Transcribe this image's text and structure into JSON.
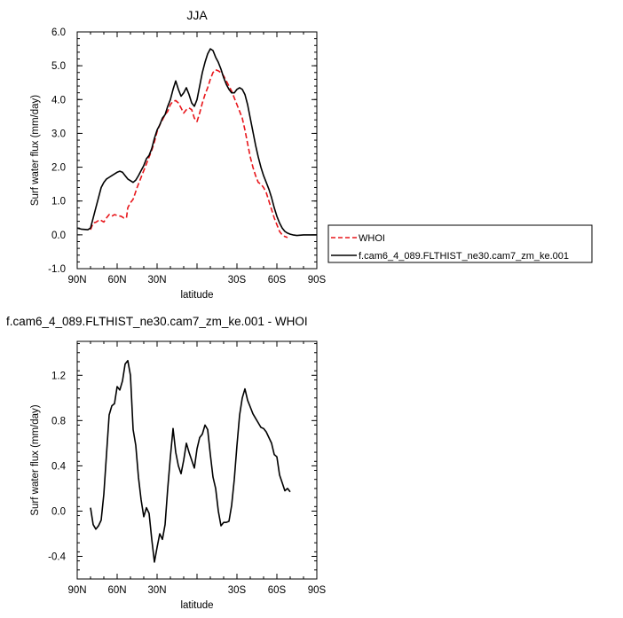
{
  "chart_data": [
    {
      "type": "line",
      "title": "JJA",
      "xlabel": "latitude",
      "ylabel": "Surf water flux (mm/day)",
      "xlim": [
        90,
        -90
      ],
      "ylim": [
        -1.0,
        6.0
      ],
      "x_ticks": [
        90,
        60,
        30,
        0,
        -30,
        -60,
        -90
      ],
      "x_tick_labels": [
        "90N",
        "60N",
        "30N",
        "",
        "30S",
        "60S",
        "90S"
      ],
      "y_ticks": [
        -1.0,
        0.0,
        1.0,
        2.0,
        3.0,
        4.0,
        5.0,
        6.0
      ],
      "y_tick_labels": [
        "-1.0",
        "0.0",
        "1.0",
        "2.0",
        "3.0",
        "4.0",
        "5.0",
        "6.0"
      ],
      "legend": "right",
      "series": [
        {
          "name": "WHOI",
          "color": "#e8161b",
          "style": "dashed",
          "points": [
            [
              80,
              0.15
            ],
            [
              78,
              0.35
            ],
            [
              76,
              0.37
            ],
            [
              73,
              0.45
            ],
            [
              70,
              0.38
            ],
            [
              68,
              0.5
            ],
            [
              66,
              0.6
            ],
            [
              64,
              0.55
            ],
            [
              62,
              0.6
            ],
            [
              60,
              0.57
            ],
            [
              57,
              0.55
            ],
            [
              55,
              0.5
            ],
            [
              53,
              0.5
            ],
            [
              52,
              0.8
            ],
            [
              50,
              0.95
            ],
            [
              48,
              1.05
            ],
            [
              45,
              1.4
            ],
            [
              42,
              1.7
            ],
            [
              40,
              1.9
            ],
            [
              38,
              2.1
            ],
            [
              36,
              2.3
            ],
            [
              34,
              2.5
            ],
            [
              32,
              2.75
            ],
            [
              30,
              3.05
            ],
            [
              28,
              3.25
            ],
            [
              26,
              3.4
            ],
            [
              24,
              3.55
            ],
            [
              22,
              3.65
            ],
            [
              20,
              3.85
            ],
            [
              18,
              3.95
            ],
            [
              16,
              3.97
            ],
            [
              14,
              3.9
            ],
            [
              12,
              3.75
            ],
            [
              10,
              3.6
            ],
            [
              8,
              3.7
            ],
            [
              6,
              3.75
            ],
            [
              4,
              3.7
            ],
            [
              2,
              3.45
            ],
            [
              0,
              3.35
            ],
            [
              -2,
              3.6
            ],
            [
              -4,
              3.9
            ],
            [
              -6,
              4.15
            ],
            [
              -8,
              4.35
            ],
            [
              -10,
              4.6
            ],
            [
              -12,
              4.8
            ],
            [
              -14,
              4.88
            ],
            [
              -16,
              4.85
            ],
            [
              -18,
              4.8
            ],
            [
              -20,
              4.7
            ],
            [
              -22,
              4.55
            ],
            [
              -24,
              4.4
            ],
            [
              -26,
              4.25
            ],
            [
              -28,
              4.05
            ],
            [
              -30,
              3.85
            ],
            [
              -32,
              3.65
            ],
            [
              -34,
              3.45
            ],
            [
              -36,
              3.1
            ],
            [
              -38,
              2.7
            ],
            [
              -40,
              2.3
            ],
            [
              -42,
              2.0
            ],
            [
              -44,
              1.75
            ],
            [
              -46,
              1.55
            ],
            [
              -48,
              1.5
            ],
            [
              -50,
              1.4
            ],
            [
              -52,
              1.25
            ],
            [
              -54,
              1.0
            ],
            [
              -56,
              0.75
            ],
            [
              -58,
              0.5
            ],
            [
              -60,
              0.3
            ],
            [
              -62,
              0.1
            ],
            [
              -64,
              0.0
            ],
            [
              -66,
              -0.05
            ],
            [
              -68,
              -0.08
            ]
          ]
        },
        {
          "name": "f.cam6_4_089.FLTHIST_ne30.cam7_zm_ke.001",
          "color": "#000000",
          "style": "solid",
          "points": [
            [
              90,
              0.2
            ],
            [
              87,
              0.17
            ],
            [
              84,
              0.16
            ],
            [
              82,
              0.15
            ],
            [
              80,
              0.2
            ],
            [
              78,
              0.5
            ],
            [
              76,
              0.8
            ],
            [
              74,
              1.1
            ],
            [
              72,
              1.4
            ],
            [
              70,
              1.55
            ],
            [
              68,
              1.65
            ],
            [
              66,
              1.7
            ],
            [
              64,
              1.75
            ],
            [
              62,
              1.8
            ],
            [
              60,
              1.85
            ],
            [
              58,
              1.88
            ],
            [
              56,
              1.85
            ],
            [
              54,
              1.75
            ],
            [
              52,
              1.65
            ],
            [
              50,
              1.6
            ],
            [
              48,
              1.55
            ],
            [
              46,
              1.62
            ],
            [
              44,
              1.75
            ],
            [
              42,
              1.9
            ],
            [
              40,
              2.05
            ],
            [
              38,
              2.25
            ],
            [
              36,
              2.35
            ],
            [
              34,
              2.55
            ],
            [
              32,
              2.85
            ],
            [
              30,
              3.1
            ],
            [
              28,
              3.25
            ],
            [
              26,
              3.45
            ],
            [
              24,
              3.55
            ],
            [
              22,
              3.8
            ],
            [
              20,
              4.0
            ],
            [
              18,
              4.3
            ],
            [
              16,
              4.55
            ],
            [
              14,
              4.3
            ],
            [
              12,
              4.1
            ],
            [
              10,
              4.2
            ],
            [
              8,
              4.35
            ],
            [
              6,
              4.15
            ],
            [
              4,
              3.9
            ],
            [
              2,
              3.8
            ],
            [
              0,
              4.0
            ],
            [
              -2,
              4.4
            ],
            [
              -4,
              4.8
            ],
            [
              -6,
              5.1
            ],
            [
              -8,
              5.35
            ],
            [
              -10,
              5.5
            ],
            [
              -12,
              5.45
            ],
            [
              -14,
              5.25
            ],
            [
              -16,
              5.1
            ],
            [
              -18,
              4.9
            ],
            [
              -20,
              4.65
            ],
            [
              -22,
              4.45
            ],
            [
              -24,
              4.3
            ],
            [
              -26,
              4.2
            ],
            [
              -28,
              4.2
            ],
            [
              -30,
              4.3
            ],
            [
              -32,
              4.35
            ],
            [
              -34,
              4.3
            ],
            [
              -36,
              4.15
            ],
            [
              -38,
              3.85
            ],
            [
              -40,
              3.45
            ],
            [
              -42,
              3.05
            ],
            [
              -44,
              2.65
            ],
            [
              -46,
              2.3
            ],
            [
              -48,
              2.0
            ],
            [
              -50,
              1.75
            ],
            [
              -52,
              1.55
            ],
            [
              -54,
              1.35
            ],
            [
              -56,
              1.1
            ],
            [
              -58,
              0.8
            ],
            [
              -60,
              0.55
            ],
            [
              -62,
              0.35
            ],
            [
              -64,
              0.2
            ],
            [
              -66,
              0.1
            ],
            [
              -68,
              0.05
            ],
            [
              -70,
              0.02
            ],
            [
              -72,
              0.0
            ],
            [
              -75,
              -0.02
            ],
            [
              -80,
              0.0
            ],
            [
              -85,
              0.0
            ],
            [
              -90,
              0.0
            ]
          ]
        }
      ]
    },
    {
      "type": "line",
      "title": "f.cam6_4_089.FLTHIST_ne30.cam7_zm_ke.001 - WHOI",
      "xlabel": "latitude",
      "ylabel": "Surf water flux (mm/day)",
      "xlim": [
        90,
        -90
      ],
      "ylim": [
        -0.6,
        1.5
      ],
      "x_ticks": [
        90,
        60,
        30,
        0,
        -30,
        -60,
        -90
      ],
      "x_tick_labels": [
        "90N",
        "60N",
        "30N",
        "",
        "30S",
        "60S",
        "90S"
      ],
      "y_ticks": [
        -0.4,
        0.0,
        0.4,
        0.8,
        1.2
      ],
      "y_tick_labels": [
        "-0.4",
        "0.0",
        "0.4",
        "0.8",
        "1.2"
      ],
      "series": [
        {
          "color": "#000000",
          "style": "solid",
          "points": [
            [
              80,
              0.03
            ],
            [
              78,
              -0.12
            ],
            [
              76,
              -0.16
            ],
            [
              74,
              -0.13
            ],
            [
              72,
              -0.08
            ],
            [
              70,
              0.15
            ],
            [
              68,
              0.5
            ],
            [
              66,
              0.85
            ],
            [
              64,
              0.93
            ],
            [
              62,
              0.95
            ],
            [
              60,
              1.1
            ],
            [
              58,
              1.07
            ],
            [
              56,
              1.15
            ],
            [
              54,
              1.3
            ],
            [
              52,
              1.33
            ],
            [
              50,
              1.2
            ],
            [
              48,
              0.72
            ],
            [
              46,
              0.58
            ],
            [
              44,
              0.3
            ],
            [
              42,
              0.1
            ],
            [
              40,
              -0.05
            ],
            [
              38,
              0.03
            ],
            [
              36,
              -0.02
            ],
            [
              34,
              -0.25
            ],
            [
              32,
              -0.45
            ],
            [
              30,
              -0.32
            ],
            [
              28,
              -0.2
            ],
            [
              26,
              -0.25
            ],
            [
              24,
              -0.12
            ],
            [
              22,
              0.2
            ],
            [
              20,
              0.48
            ],
            [
              18,
              0.73
            ],
            [
              16,
              0.52
            ],
            [
              14,
              0.4
            ],
            [
              12,
              0.33
            ],
            [
              10,
              0.45
            ],
            [
              8,
              0.6
            ],
            [
              6,
              0.52
            ],
            [
              4,
              0.45
            ],
            [
              2,
              0.38
            ],
            [
              0,
              0.55
            ],
            [
              -2,
              0.65
            ],
            [
              -4,
              0.68
            ],
            [
              -6,
              0.76
            ],
            [
              -8,
              0.72
            ],
            [
              -10,
              0.5
            ],
            [
              -12,
              0.3
            ],
            [
              -14,
              0.2
            ],
            [
              -16,
              0.0
            ],
            [
              -18,
              -0.13
            ],
            [
              -20,
              -0.1
            ],
            [
              -22,
              -0.1
            ],
            [
              -24,
              -0.09
            ],
            [
              -26,
              0.05
            ],
            [
              -28,
              0.28
            ],
            [
              -30,
              0.58
            ],
            [
              -32,
              0.85
            ],
            [
              -34,
              1.0
            ],
            [
              -36,
              1.08
            ],
            [
              -38,
              0.98
            ],
            [
              -40,
              0.92
            ],
            [
              -42,
              0.86
            ],
            [
              -44,
              0.82
            ],
            [
              -46,
              0.78
            ],
            [
              -48,
              0.74
            ],
            [
              -50,
              0.73
            ],
            [
              -52,
              0.7
            ],
            [
              -54,
              0.65
            ],
            [
              -56,
              0.6
            ],
            [
              -58,
              0.5
            ],
            [
              -60,
              0.48
            ],
            [
              -62,
              0.32
            ],
            [
              -64,
              0.25
            ],
            [
              -66,
              0.18
            ],
            [
              -68,
              0.2
            ],
            [
              -70,
              0.17
            ]
          ]
        }
      ]
    }
  ]
}
